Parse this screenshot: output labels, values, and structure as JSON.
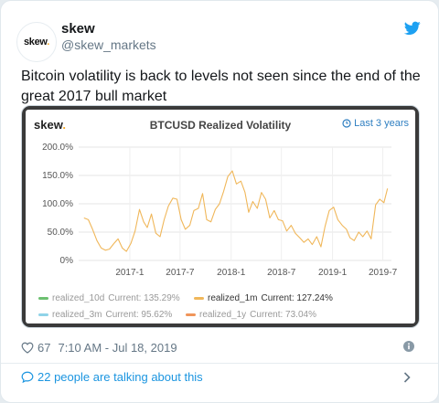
{
  "account": {
    "avatar_text": "skew",
    "display_name": "skew",
    "handle": "@skew_markets"
  },
  "tweet": {
    "text": "Bitcoin volatility is back to levels not seen since the end of the great 2017 bull market"
  },
  "chart_card": {
    "logo_text": "skew",
    "range_label": "Last 3 years",
    "legend": [
      {
        "name": "realized_10d",
        "current": "Current: 135.29%",
        "color": "#6cc070",
        "active": false
      },
      {
        "name": "realized_1m",
        "current": "Current: 127.24%",
        "color": "#f0b75a",
        "active": true
      },
      {
        "name": "realized_3m",
        "current": "Current: 95.62%",
        "color": "#8fd3e8",
        "active": false
      },
      {
        "name": "realized_1y",
        "current": "Current: 73.04%",
        "color": "#f0955a",
        "active": false
      }
    ]
  },
  "chart_data": {
    "type": "line",
    "title": "BTCUSD Realized Volatility",
    "y_ticks": [
      "200.0%",
      "150.0%",
      "100.0%",
      "50.0%",
      "0%"
    ],
    "ylim": [
      0,
      200
    ],
    "x_ticks": [
      "2017-1",
      "2017-7",
      "2018-1",
      "2018-7",
      "2019-1",
      "2019-7"
    ],
    "grid": true,
    "series": [
      {
        "name": "realized_1m",
        "color": "#f0b75a",
        "x": [
          "2016-07-20",
          "2016-08-05",
          "2016-08-20",
          "2016-09-05",
          "2016-09-20",
          "2016-10-05",
          "2016-10-20",
          "2016-11-05",
          "2016-11-20",
          "2016-12-05",
          "2016-12-20",
          "2017-01-05",
          "2017-01-20",
          "2017-02-05",
          "2017-02-20",
          "2017-03-05",
          "2017-03-20",
          "2017-04-05",
          "2017-04-20",
          "2017-05-05",
          "2017-05-20",
          "2017-06-05",
          "2017-06-20",
          "2017-07-05",
          "2017-07-20",
          "2017-08-05",
          "2017-08-20",
          "2017-09-05",
          "2017-09-20",
          "2017-10-05",
          "2017-10-20",
          "2017-11-05",
          "2017-11-20",
          "2017-12-05",
          "2017-12-20",
          "2018-01-05",
          "2018-01-20",
          "2018-02-05",
          "2018-02-20",
          "2018-03-05",
          "2018-03-20",
          "2018-04-05",
          "2018-04-20",
          "2018-05-05",
          "2018-05-20",
          "2018-06-05",
          "2018-06-20",
          "2018-07-05",
          "2018-07-20",
          "2018-08-05",
          "2018-08-20",
          "2018-09-05",
          "2018-09-20",
          "2018-10-05",
          "2018-10-20",
          "2018-11-05",
          "2018-11-20",
          "2018-12-05",
          "2018-12-20",
          "2019-01-05",
          "2019-01-20",
          "2019-02-05",
          "2019-02-20",
          "2019-03-05",
          "2019-03-20",
          "2019-04-05",
          "2019-04-20",
          "2019-05-05",
          "2019-05-20",
          "2019-06-05",
          "2019-06-20",
          "2019-07-05",
          "2019-07-18"
        ],
        "values": [
          75,
          72,
          55,
          35,
          22,
          18,
          20,
          30,
          38,
          22,
          16,
          30,
          52,
          90,
          68,
          58,
          82,
          48,
          42,
          72,
          96,
          110,
          108,
          72,
          55,
          62,
          88,
          92,
          118,
          72,
          68,
          90,
          100,
          122,
          148,
          158,
          135,
          140,
          120,
          85,
          104,
          92,
          120,
          108,
          75,
          88,
          72,
          70,
          52,
          62,
          48,
          40,
          32,
          38,
          28,
          42,
          24,
          60,
          88,
          94,
          72,
          62,
          55,
          40,
          35,
          50,
          42,
          52,
          38,
          98,
          108,
          102,
          127
        ]
      }
    ]
  },
  "footer": {
    "likes": "67",
    "timestamp": "7:10 AM - Jul 18, 2019",
    "talking": "22 people are talking about this"
  }
}
